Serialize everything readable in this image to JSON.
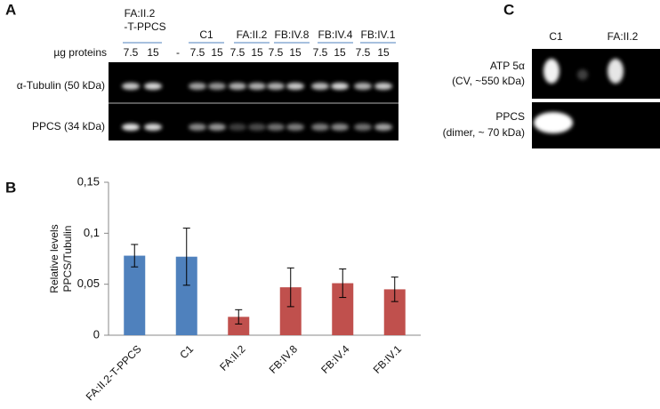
{
  "panels": [
    "A",
    "B",
    "C"
  ],
  "blot_a": {
    "protein_label": "µg proteins",
    "groups": [
      [
        "FA:II.2",
        "-T-PPCS"
      ],
      [
        "C1"
      ],
      [
        "FA:II.2"
      ],
      [
        "FB:IV.8"
      ],
      [
        "FB:IV.4"
      ],
      [
        "FB:IV.1"
      ]
    ],
    "lanes": [
      "7.5",
      "15",
      "-",
      "7.5",
      "15",
      "7.5",
      "15",
      "7.5",
      "15",
      "7.5",
      "15",
      "7.5",
      "15"
    ],
    "rows": [
      "α-Tubulin (50 kDa)",
      "PPCS (34 kDa)"
    ]
  },
  "blot_c": {
    "lanes": [
      "C1",
      "FA:II.2"
    ],
    "rows": [
      [
        "ATP 5α",
        "(CV, ~550 kDa)"
      ],
      [
        "PPCS",
        "(dimer, ~ 70 kDa)"
      ]
    ]
  },
  "chart_data": {
    "type": "bar",
    "ylabel": [
      "Relative levels",
      "PPCS/Tubulin"
    ],
    "categories": [
      "FA:II.2-T-PPCS",
      "C1",
      "FA:II.2",
      "FB:IV.8",
      "FB:IV.4",
      "FB:IV.1"
    ],
    "values": [
      0.078,
      0.077,
      0.018,
      0.047,
      0.051,
      0.045
    ],
    "errors": [
      0.011,
      0.028,
      0.007,
      0.019,
      0.014,
      0.012
    ],
    "colors": [
      "#4f81bd",
      "#4f81bd",
      "#c0504d",
      "#c0504d",
      "#c0504d",
      "#c0504d"
    ],
    "ylim": [
      0,
      0.15
    ],
    "yticks": [
      0,
      {
        "value": 0.05,
        "label": "0,05"
      },
      {
        "value": 0.1,
        "label": "0,1"
      },
      {
        "value": 0.15,
        "label": "0,15"
      }
    ]
  }
}
